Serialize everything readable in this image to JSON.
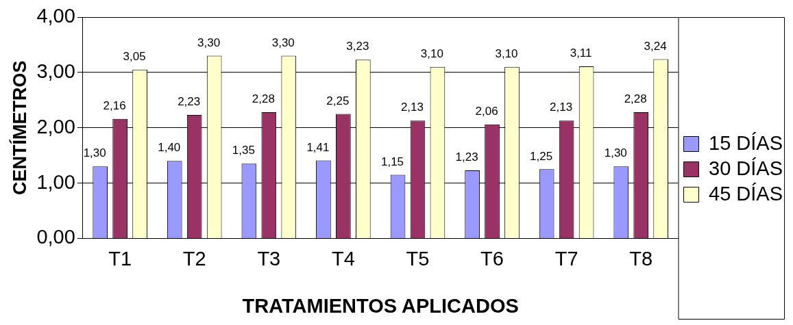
{
  "chart_data": {
    "type": "bar",
    "xlabel": "TRATAMIENTOS APLICADOS",
    "ylabel": "CENTÍMETROS",
    "categories": [
      "T1",
      "T2",
      "T3",
      "T4",
      "T5",
      "T6",
      "T7",
      "T8"
    ],
    "series": [
      {
        "name": "15 DÍAS",
        "color": "#9999ff",
        "values": [
          1.3,
          1.4,
          1.35,
          1.41,
          1.15,
          1.23,
          1.25,
          1.3
        ],
        "value_labels": [
          "1,30",
          "1,40",
          "1,35",
          "1,41",
          "1,15",
          "1,23",
          "1,25",
          "1,30"
        ]
      },
      {
        "name": "30 DÍAS",
        "color": "#993366",
        "values": [
          2.16,
          2.23,
          2.28,
          2.25,
          2.13,
          2.06,
          2.13,
          2.28
        ],
        "value_labels": [
          "2,16",
          "2,23",
          "2,28",
          "2,25",
          "2,13",
          "2,06",
          "2,13",
          "2,28"
        ]
      },
      {
        "name": "45 DÍAS",
        "color": "#ffffcc",
        "values": [
          3.05,
          3.3,
          3.3,
          3.23,
          3.1,
          3.1,
          3.11,
          3.24
        ],
        "value_labels": [
          "3,05",
          "3,30",
          "3,30",
          "3,23",
          "3,10",
          "3,10",
          "3,11",
          "3,24"
        ]
      }
    ],
    "ylim": [
      0,
      4
    ],
    "yticks": [
      {
        "value": 0,
        "label": "0,00"
      },
      {
        "value": 1,
        "label": "1,00"
      },
      {
        "value": 2,
        "label": "2,00"
      },
      {
        "value": 3,
        "label": "3,00"
      },
      {
        "value": 4,
        "label": "4,00"
      }
    ],
    "grid": "y",
    "legend": "right"
  }
}
